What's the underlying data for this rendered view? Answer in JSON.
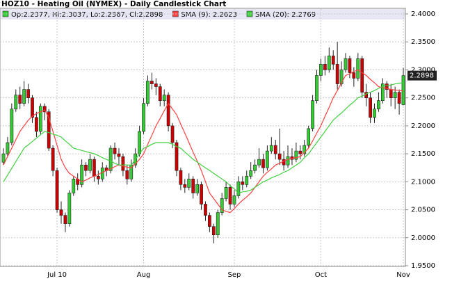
{
  "chart_data": {
    "type": "candlestick",
    "title": "HOZ10 - Heating Oil (NYMEX) - Daily Candlestick Chart",
    "ohlc_label": "Op:2.2377, Hi:2.3037, Lo:2.2367, Cl:2.2898",
    "up_color": "#33cc33",
    "down_color": "#cc0000",
    "categories": [
      null,
      null,
      null,
      null,
      null,
      null,
      null,
      null,
      null,
      null,
      null,
      null,
      null,
      "Jul 10",
      null,
      null,
      null,
      null,
      null,
      null,
      null,
      null,
      null,
      null,
      null,
      null,
      null,
      null,
      null,
      null,
      null,
      null,
      null,
      null,
      "Aug",
      null,
      null,
      null,
      null,
      null,
      null,
      null,
      null,
      null,
      null,
      null,
      null,
      null,
      null,
      null,
      null,
      null,
      null,
      null,
      null,
      null,
      "Sep",
      null,
      null,
      null,
      null,
      null,
      null,
      null,
      null,
      null,
      null,
      null,
      null,
      null,
      null,
      null,
      null,
      null,
      null,
      null,
      null,
      "Oct",
      null,
      null,
      null,
      null,
      null,
      null,
      null,
      null,
      null,
      null,
      null,
      null,
      null,
      null,
      null,
      null,
      null,
      null,
      null,
      "Nov"
    ],
    "open": [
      2.135,
      2.15,
      2.17,
      2.23,
      2.255,
      2.24,
      2.265,
      2.25,
      2.215,
      2.19,
      2.235,
      2.225,
      2.16,
      2.12,
      2.05,
      2.04,
      2.025,
      2.08,
      2.105,
      2.095,
      2.13,
      2.12,
      2.14,
      2.11,
      2.105,
      2.125,
      2.12,
      2.16,
      2.15,
      2.145,
      2.12,
      2.105,
      2.13,
      2.15,
      2.19,
      2.24,
      2.28,
      2.275,
      2.27,
      2.245,
      2.255,
      2.2,
      2.17,
      2.12,
      2.095,
      2.09,
      2.105,
      2.08,
      2.095,
      2.06,
      2.04,
      2.02,
      2.005,
      2.045,
      2.07,
      2.09,
      2.06,
      2.075,
      2.1,
      2.095,
      2.11,
      2.12,
      2.13,
      2.14,
      2.125,
      2.155,
      2.165,
      2.15,
      2.14,
      2.13,
      2.145,
      2.14,
      2.155,
      2.15,
      2.165,
      2.195,
      2.245,
      2.29,
      2.31,
      2.3,
      2.325,
      2.31,
      2.275,
      2.3,
      2.32,
      2.295,
      2.285,
      2.32,
      2.26,
      2.25,
      2.215,
      2.23,
      2.245,
      2.275,
      2.265,
      2.25,
      2.26,
      2.2377
    ],
    "high": [
      2.16,
      2.18,
      2.24,
      2.265,
      2.27,
      2.28,
      2.275,
      2.255,
      2.225,
      2.24,
      2.24,
      2.23,
      2.165,
      2.125,
      2.065,
      2.045,
      2.085,
      2.11,
      2.115,
      2.14,
      2.135,
      2.15,
      2.145,
      2.12,
      2.135,
      2.13,
      2.165,
      2.17,
      2.16,
      2.15,
      2.13,
      2.14,
      2.16,
      2.2,
      2.25,
      2.29,
      2.295,
      2.285,
      2.275,
      2.265,
      2.26,
      2.205,
      2.175,
      2.125,
      2.105,
      2.115,
      2.11,
      2.105,
      2.1,
      2.065,
      2.045,
      2.025,
      2.05,
      2.08,
      2.1,
      2.095,
      2.085,
      2.11,
      2.11,
      2.12,
      2.135,
      2.14,
      2.16,
      2.15,
      2.165,
      2.18,
      2.175,
      2.195,
      2.155,
      2.165,
      2.16,
      2.17,
      2.165,
      2.175,
      2.2,
      2.255,
      2.3,
      2.32,
      2.325,
      2.34,
      2.335,
      2.35,
      2.315,
      2.33,
      2.325,
      2.305,
      2.33,
      2.325,
      2.275,
      2.26,
      2.24,
      2.26,
      2.285,
      2.28,
      2.275,
      2.27,
      2.265,
      2.3037
    ],
    "low": [
      2.13,
      2.145,
      2.165,
      2.225,
      2.23,
      2.235,
      2.24,
      2.205,
      2.18,
      2.185,
      2.21,
      2.155,
      2.11,
      2.045,
      2.025,
      2.01,
      2.02,
      2.075,
      2.085,
      2.09,
      2.11,
      2.115,
      2.1,
      2.095,
      2.1,
      2.11,
      2.115,
      2.14,
      2.13,
      2.11,
      2.095,
      2.1,
      2.125,
      2.145,
      2.185,
      2.235,
      2.265,
      2.255,
      2.235,
      2.235,
      2.19,
      2.16,
      2.11,
      2.085,
      2.08,
      2.085,
      2.07,
      2.075,
      2.05,
      2.03,
      2.01,
      1.99,
      2.0,
      2.04,
      2.065,
      2.05,
      2.055,
      2.07,
      2.085,
      2.09,
      2.105,
      2.115,
      2.125,
      2.115,
      2.12,
      2.15,
      2.14,
      2.13,
      2.12,
      2.125,
      2.13,
      2.135,
      2.14,
      2.145,
      2.16,
      2.19,
      2.24,
      2.28,
      2.29,
      2.295,
      2.3,
      2.265,
      2.27,
      2.295,
      2.285,
      2.27,
      2.28,
      2.25,
      2.235,
      2.205,
      2.205,
      2.225,
      2.24,
      2.25,
      2.235,
      2.23,
      2.22,
      2.2367
    ],
    "close": [
      2.15,
      2.17,
      2.23,
      2.255,
      2.24,
      2.265,
      2.25,
      2.215,
      2.19,
      2.235,
      2.225,
      2.16,
      2.12,
      2.05,
      2.04,
      2.025,
      2.08,
      2.105,
      2.095,
      2.13,
      2.12,
      2.14,
      2.11,
      2.105,
      2.125,
      2.12,
      2.16,
      2.15,
      2.145,
      2.12,
      2.105,
      2.13,
      2.15,
      2.19,
      2.24,
      2.28,
      2.275,
      2.27,
      2.245,
      2.255,
      2.2,
      2.17,
      2.12,
      2.095,
      2.09,
      2.105,
      2.08,
      2.095,
      2.06,
      2.04,
      2.02,
      2.005,
      2.045,
      2.07,
      2.09,
      2.06,
      2.075,
      2.1,
      2.095,
      2.11,
      2.12,
      2.13,
      2.14,
      2.125,
      2.155,
      2.165,
      2.15,
      2.14,
      2.13,
      2.145,
      2.14,
      2.155,
      2.15,
      2.165,
      2.195,
      2.245,
      2.29,
      2.31,
      2.3,
      2.325,
      2.31,
      2.275,
      2.3,
      2.32,
      2.295,
      2.285,
      2.32,
      2.26,
      2.25,
      2.215,
      2.23,
      2.245,
      2.275,
      2.265,
      2.25,
      2.26,
      2.24,
      2.2898
    ],
    "series": [
      {
        "name": "SMA (9): 2.2623",
        "color": "#ff4040",
        "values": [
          2.13,
          2.145,
          2.16,
          2.175,
          2.19,
          2.2,
          2.21,
          2.217,
          2.222,
          2.225,
          2.228,
          2.215,
          2.19,
          2.165,
          2.14,
          2.125,
          2.115,
          2.11,
          2.105,
          2.1,
          2.103,
          2.107,
          2.11,
          2.113,
          2.117,
          2.12,
          2.123,
          2.127,
          2.13,
          2.128,
          2.126,
          2.125,
          2.132,
          2.14,
          2.15,
          2.167,
          2.183,
          2.2,
          2.213,
          2.227,
          2.24,
          2.23,
          2.22,
          2.203,
          2.187,
          2.17,
          2.153,
          2.137,
          2.12,
          2.1,
          2.08,
          2.07,
          2.06,
          2.05,
          2.047,
          2.045,
          2.052,
          2.06,
          2.067,
          2.073,
          2.08,
          2.09,
          2.1,
          2.11,
          2.117,
          2.123,
          2.13,
          2.133,
          2.137,
          2.14,
          2.142,
          2.143,
          2.145,
          2.152,
          2.16,
          2.173,
          2.187,
          2.2,
          2.217,
          2.233,
          2.25,
          2.263,
          2.277,
          2.29,
          2.293,
          2.297,
          2.3,
          2.295,
          2.29,
          2.283,
          2.277,
          2.27,
          2.268,
          2.267,
          2.265,
          2.264,
          2.263,
          2.2623
        ]
      },
      {
        "name": "SMA (20): 2.2769",
        "color": "#40d040",
        "values": [
          2.1,
          2.112,
          2.124,
          2.136,
          2.148,
          2.16,
          2.166,
          2.172,
          2.178,
          2.184,
          2.19,
          2.188,
          2.185,
          2.183,
          2.18,
          2.173,
          2.167,
          2.16,
          2.158,
          2.156,
          2.154,
          2.152,
          2.15,
          2.147,
          2.143,
          2.14,
          2.137,
          2.133,
          2.13,
          2.13,
          2.13,
          2.13,
          2.14,
          2.15,
          2.16,
          2.163,
          2.167,
          2.17,
          2.17,
          2.17,
          2.17,
          2.167,
          2.163,
          2.16,
          2.153,
          2.147,
          2.14,
          2.135,
          2.13,
          2.125,
          2.12,
          2.115,
          2.11,
          2.105,
          2.1,
          2.093,
          2.087,
          2.08,
          2.082,
          2.083,
          2.085,
          2.09,
          2.095,
          2.1,
          2.103,
          2.107,
          2.11,
          2.113,
          2.117,
          2.12,
          2.125,
          2.13,
          2.135,
          2.143,
          2.15,
          2.16,
          2.17,
          2.18,
          2.19,
          2.2,
          2.21,
          2.217,
          2.223,
          2.23,
          2.237,
          2.243,
          2.25,
          2.253,
          2.257,
          2.26,
          2.263,
          2.267,
          2.27,
          2.272,
          2.273,
          2.275,
          2.276,
          2.2769
        ]
      }
    ],
    "ylim": [
      1.95,
      2.4
    ],
    "yticks": [
      {
        "value": 2.4,
        "label": "2.4000"
      },
      {
        "value": 2.35,
        "label": "2.3500"
      },
      {
        "value": 2.3,
        "label": "2.3000"
      },
      {
        "value": 2.25,
        "label": "2.2500"
      },
      {
        "value": 2.2,
        "label": "2.2000"
      },
      {
        "value": 2.15,
        "label": "2.1500"
      },
      {
        "value": 2.1,
        "label": "2.1000"
      },
      {
        "value": 2.05,
        "label": "2.0500"
      },
      {
        "value": 2.0,
        "label": "2.0000"
      },
      {
        "value": 1.95,
        "label": "1.9500"
      }
    ],
    "grid": true
  }
}
